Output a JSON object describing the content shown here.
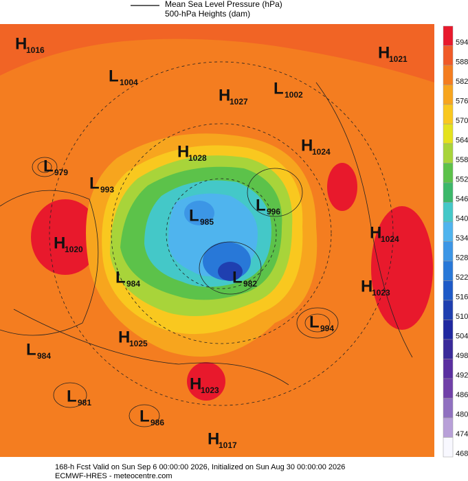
{
  "legend": {
    "items": [
      "Mean Sea Level Pressure (hPa)",
      "500-hPa Heights (dam)"
    ]
  },
  "centers": [
    {
      "type": "H",
      "pressure": "1016"
    },
    {
      "type": "L",
      "pressure": "1004"
    },
    {
      "type": "H",
      "pressure": "1027"
    },
    {
      "type": "L",
      "pressure": "1002"
    },
    {
      "type": "H",
      "pressure": "1021"
    },
    {
      "type": "H",
      "pressure": "1028"
    },
    {
      "type": "H",
      "pressure": "1024"
    },
    {
      "type": "L",
      "pressure": "979"
    },
    {
      "type": "L",
      "pressure": "993"
    },
    {
      "type": "L",
      "pressure": "985"
    },
    {
      "type": "L",
      "pressure": "996"
    },
    {
      "type": "H",
      "pressure": "1020"
    },
    {
      "type": "H",
      "pressure": "1024"
    },
    {
      "type": "L",
      "pressure": "984"
    },
    {
      "type": "L",
      "pressure": "982"
    },
    {
      "type": "H",
      "pressure": "1023"
    },
    {
      "type": "H",
      "pressure": "1025"
    },
    {
      "type": "L",
      "pressure": "994"
    },
    {
      "type": "L",
      "pressure": "984"
    },
    {
      "type": "H",
      "pressure": "1023"
    },
    {
      "type": "L",
      "pressure": "981"
    },
    {
      "type": "L",
      "pressure": "986"
    },
    {
      "type": "H",
      "pressure": "1017"
    }
  ],
  "colorbar": {
    "levels": [
      "594",
      "588",
      "582",
      "576",
      "570",
      "564",
      "558",
      "552",
      "546",
      "540",
      "534",
      "528",
      "522",
      "516",
      "510",
      "504",
      "498",
      "492",
      "486",
      "480",
      "474",
      "468"
    ],
    "colors": [
      "#e8192c",
      "#f05a28",
      "#f47d20",
      "#f7a51e",
      "#f9c81f",
      "#e4e21e",
      "#a8d43a",
      "#5cc24a",
      "#3cb86a",
      "#44c8c8",
      "#4fb4ee",
      "#3c96e6",
      "#2878d8",
      "#1e5ac8",
      "#1f3fb0",
      "#2028a0",
      "#3a2a9a",
      "#5a2fa0",
      "#7040a8",
      "#9070c0",
      "#b8a0d8",
      "#f8f8ff"
    ]
  },
  "footer": {
    "line1": "168-h Fcst Valid on Sun Sep  6 00:00:00 2026, Initialized on Sun Aug 30 00:00:00 2026",
    "line2": "ECMWF-HRES  - meteocentre.com"
  }
}
